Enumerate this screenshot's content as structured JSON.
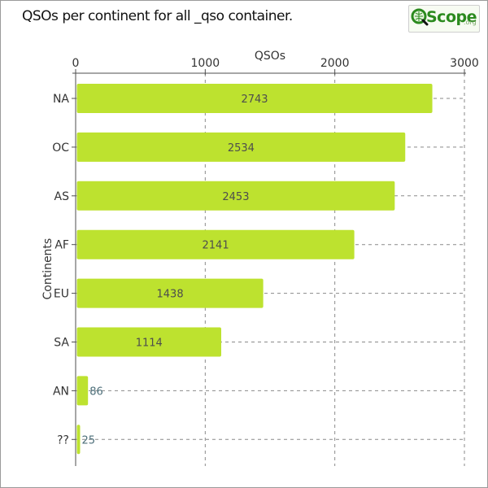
{
  "title": "QSOs per continent for all _qso container.",
  "logo": {
    "q": "Q",
    "scope": "Scope",
    "org": ".org"
  },
  "colors": {
    "bar": "#bde22f",
    "bar_label": "#4d4d4d",
    "axis": "#4d4d4d",
    "grid": "#8a8a8a"
  },
  "chart_data": {
    "type": "bar",
    "orientation": "horizontal",
    "categories": [
      "NA",
      "OC",
      "AS",
      "AF",
      "EU",
      "SA",
      "AN",
      "??"
    ],
    "values": [
      2743,
      2534,
      2453,
      2141,
      1438,
      1114,
      86,
      25
    ],
    "xlabel": "QSOs",
    "ylabel": "Continents",
    "xlim": [
      0,
      3000
    ],
    "xticks": [
      0,
      1000,
      2000,
      3000
    ],
    "x_axis_position": "top",
    "grid": true
  }
}
